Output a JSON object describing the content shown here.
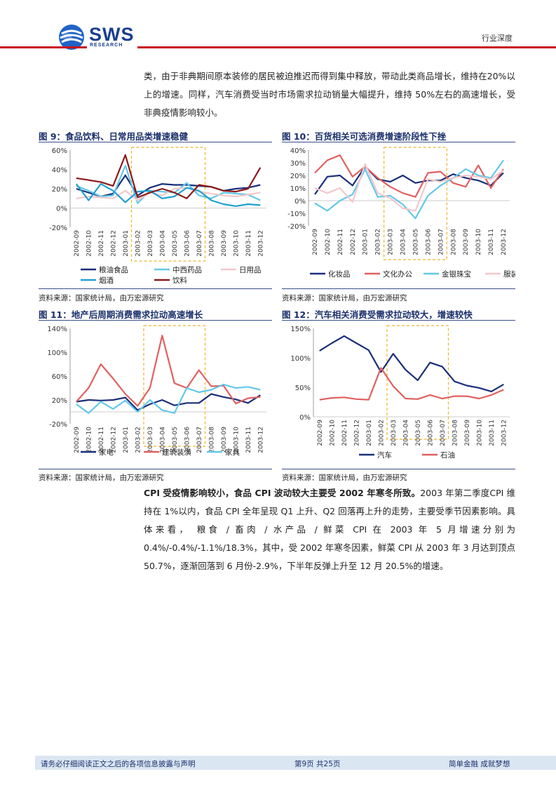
{
  "header": {
    "logo_text": "SWS",
    "logo_sub": "RESEARCH",
    "label": "行业深度"
  },
  "intro_text": "类，由于非典期间原本装修的居民被迫推迟而得到集中释放，带动此类商品增长，维持在20%以上的增速。同样，汽车消费受当时市场需求拉动销量大幅提升，维持 50%左右的高速增长，受非典疫情影响较小。",
  "colors": {
    "navy": "#1a2f7a",
    "skyblue": "#63c8e8",
    "pink": "#f2c8cc",
    "teal": "#1fa0d0",
    "darkred": "#8b1a1a",
    "red": "#e06060",
    "gold": "#f0b428"
  },
  "figures": [
    {
      "title": "图 9：食品饮料、日常用品类增速稳健",
      "source": "资料来源：国家统计局，由万宏源研究"
    },
    {
      "title": "图 10：百货相关可选消费增速阶段性下挫",
      "source": "资料来源：国家统计局，由万宏源研究"
    },
    {
      "title": "图 11：地产后周期消费需求拉动高速增长",
      "source": "资料来源：国家统计局，由万宏源研究"
    },
    {
      "title": "图 12：汽车相关消费受需求拉动较大，增速较快",
      "source": "资料来源：国家统计局，由万宏源研究"
    }
  ],
  "chart_data": [
    {
      "type": "line",
      "categories": [
        "2002-09",
        "2002-10",
        "2002-11",
        "2002-12",
        "2003-01",
        "2003-02",
        "2003-03",
        "2003-04",
        "2003-05",
        "2003-06",
        "2003-07",
        "2003-08",
        "2003-09",
        "2003-10",
        "2003-11",
        "2003-12"
      ],
      "ylim": [
        -20,
        60
      ],
      "yticks": [
        "60%",
        "40%",
        "20%",
        "0%",
        "-20%"
      ],
      "highlight": [
        "2003-02",
        "2003-07"
      ],
      "legend_order": [
        0,
        1,
        2,
        3,
        4
      ],
      "series": [
        {
          "name": "粮油食品",
          "color": "#1a2f7a",
          "values": [
            20,
            16,
            12,
            15,
            34,
            13,
            21,
            25,
            24,
            24,
            23,
            22,
            18,
            20,
            21,
            24
          ]
        },
        {
          "name": "中西药品",
          "color": "#63c8e8",
          "values": [
            23,
            18,
            12,
            13,
            44,
            5,
            18,
            17,
            16,
            26,
            13,
            10,
            16,
            15,
            14,
            8
          ]
        },
        {
          "name": "日用品",
          "color": "#f2c8cc",
          "values": [
            10,
            12,
            11,
            10,
            18,
            8,
            16,
            13,
            20,
            21,
            17,
            15,
            13,
            12,
            14,
            16
          ]
        },
        {
          "name": "烟酒",
          "color": "#1fa0d0",
          "values": [
            25,
            8,
            25,
            18,
            6,
            17,
            18,
            10,
            12,
            21,
            18,
            8,
            4,
            2,
            4,
            3
          ]
        },
        {
          "name": "饮料",
          "color": "#8b1a1a",
          "values": [
            31,
            29,
            27,
            23,
            55,
            11,
            16,
            20,
            16,
            10,
            24,
            22,
            18,
            17,
            20,
            42
          ]
        }
      ]
    },
    {
      "type": "line",
      "categories": [
        "2002-09",
        "2002-10",
        "2002-11",
        "2002-12",
        "2003-01",
        "2003-02",
        "2003-03",
        "2003-04",
        "2003-05",
        "2003-06",
        "2003-07",
        "2003-08",
        "2003-09",
        "2003-10",
        "2003-11",
        "2003-12"
      ],
      "ylim": [
        -20,
        40
      ],
      "yticks": [
        "40%",
        "30%",
        "20%",
        "10%",
        "0%",
        "-10%",
        "-20%"
      ],
      "highlight": [
        "2003-03",
        "2003-07"
      ],
      "series": [
        {
          "name": "化妆品",
          "color": "#1a2f7a",
          "values": [
            5,
            19,
            20,
            12,
            27,
            17,
            15,
            20,
            14,
            16,
            16,
            21,
            18,
            16,
            12,
            22
          ]
        },
        {
          "name": "文化办公",
          "color": "#e06060",
          "values": [
            22,
            32,
            36,
            19,
            27,
            18,
            11,
            6,
            3,
            22,
            23,
            14,
            11,
            28,
            10,
            25
          ]
        },
        {
          "name": "金银珠宝",
          "color": "#63c8e8",
          "values": [
            -2,
            -8,
            0,
            5,
            25,
            3,
            4,
            -3,
            -14,
            4,
            12,
            18,
            25,
            20,
            18,
            32
          ]
        },
        {
          "name": "服装",
          "color": "#f2c8cc",
          "values": [
            10,
            6,
            10,
            -1,
            29,
            6,
            2,
            -6,
            -8,
            17,
            15,
            18,
            20,
            19,
            17,
            24
          ]
        }
      ]
    },
    {
      "type": "line",
      "categories": [
        "2002-09",
        "2002-10",
        "2002-11",
        "2002-12",
        "2003-01",
        "2003-02",
        "2003-03",
        "2003-04",
        "2003-05",
        "2003-06",
        "2003-07",
        "2003-08",
        "2003-09",
        "2003-10",
        "2003-11",
        "2003-12"
      ],
      "ylim": [
        -20,
        140
      ],
      "yticks": [
        "140%",
        "100%",
        "60%",
        "20%",
        "-20%"
      ],
      "highlight": [
        "2003-03",
        "2003-07"
      ],
      "series": [
        {
          "name": "家电",
          "color": "#1a2f7a",
          "values": [
            17,
            20,
            19,
            20,
            24,
            3,
            13,
            20,
            11,
            15,
            15,
            30,
            25,
            21,
            15,
            28
          ]
        },
        {
          "name": "建筑装潢",
          "color": "#e06060",
          "values": [
            17,
            40,
            80,
            56,
            30,
            10,
            40,
            128,
            48,
            40,
            70,
            43,
            44,
            14,
            23,
            25
          ]
        },
        {
          "name": "家具",
          "color": "#63c8e8",
          "values": [
            13,
            -2,
            17,
            5,
            19,
            0,
            20,
            3,
            -2,
            40,
            33,
            37,
            46,
            40,
            42,
            37
          ]
        }
      ]
    },
    {
      "type": "line",
      "categories": [
        "2002-09",
        "2002-10",
        "2002-11",
        "2002-12",
        "2003-01",
        "2003-02",
        "2003-03",
        "2003-04",
        "2003-05",
        "2003-06",
        "2003-07",
        "2003-08",
        "2003-09",
        "2003-10",
        "2003-11",
        "2003-12"
      ],
      "ylim": [
        0,
        150
      ],
      "yticks": [
        "150%",
        "100%",
        "50%",
        "0%"
      ],
      "highlight": [
        "2003-03",
        "2003-07"
      ],
      "series": [
        {
          "name": "汽车",
          "color": "#1a2f7a",
          "values": [
            112,
            125,
            137,
            125,
            113,
            76,
            107,
            80,
            62,
            92,
            85,
            60,
            53,
            49,
            43,
            55
          ]
        },
        {
          "name": "石油",
          "color": "#e06060",
          "values": [
            29,
            32,
            33,
            30,
            29,
            83,
            52,
            31,
            30,
            37,
            31,
            35,
            35,
            31,
            37,
            46
          ]
        }
      ]
    }
  ],
  "para2": {
    "bold": "CPI 受疫情影响较小，食品 CPI 波动较大主要受 2002 年寒冬所致。",
    "rest": "2003 年第二季度CPI 维持在 1%以内，食品 CPI 全年呈现 Q1 上升、Q2 回落再上升的走势，主要受季节因素影响。具体来看， 粮食 / 畜肉 / 水产品 / 鲜菜  CPI 在 2003 年 5 月增速分别为 0.4%/-0.4%/-1.1%/18.3%，其中，受 2002 年寒冬因素，鲜菜 CPI 从 2003 年 3 月达到顶点 50.7%，逐渐回落到 6 月份-2.9%，下半年反弹上升至 12 月 20.5%的增速。"
  },
  "footer": {
    "disclaimer": "请务必仔细阅读正文之后的各项信息披露与声明",
    "page": "第9页 共25页",
    "slogan": "简单金融 成就梦想"
  }
}
